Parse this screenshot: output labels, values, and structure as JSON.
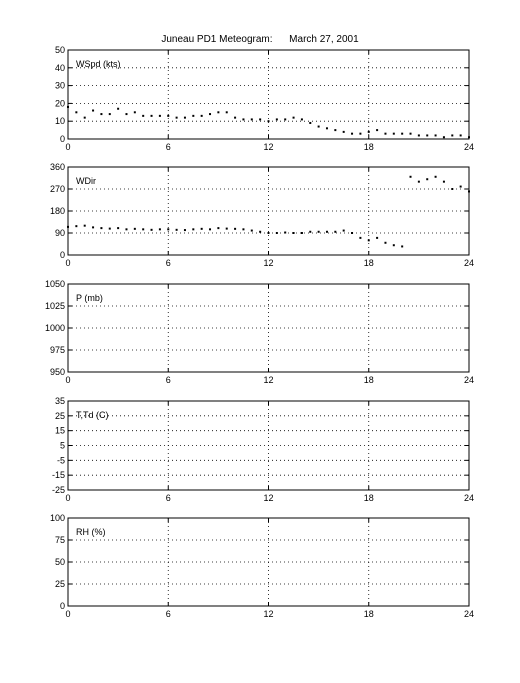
{
  "title": {
    "station": "Juneau PD1 Meteogram:",
    "date": "March 27, 2001"
  },
  "x_ticks": [
    "0",
    "6",
    "12",
    "18",
    "24"
  ],
  "chart_data": [
    {
      "type": "scatter",
      "panel_label": "WSpd (kts)",
      "xlim": [
        0,
        24
      ],
      "ylim": [
        0,
        50
      ],
      "yticks": [
        0,
        10,
        20,
        30,
        40,
        50
      ],
      "ytick_labels": [
        "0",
        "10",
        "20",
        "30",
        "40",
        "50"
      ],
      "grid": true,
      "series": [
        {
          "x": [
            0,
            0.5,
            1,
            1.5,
            2,
            2.5,
            3,
            3.5,
            4,
            4.5,
            5,
            5.5,
            6,
            6.5,
            7,
            7.5,
            8,
            8.5,
            9,
            9.5,
            10,
            10.5,
            11,
            11.5,
            12,
            12.5,
            13,
            13.5,
            14,
            14.5,
            15,
            15.5,
            16,
            16.5,
            17,
            17.5,
            18,
            18.5,
            19,
            19.5,
            20,
            20.5,
            21,
            21.5,
            22,
            22.5,
            23,
            23.5,
            24
          ],
          "y": [
            18,
            15,
            12,
            16,
            14,
            14,
            17,
            14,
            15,
            13,
            13,
            13,
            13,
            12,
            12,
            13,
            13,
            14,
            15,
            15,
            12,
            11,
            11,
            11,
            10,
            11,
            11,
            12,
            11,
            9,
            7,
            6,
            5,
            4,
            3,
            3,
            4,
            5,
            3,
            3,
            3,
            3,
            2,
            2,
            2,
            1,
            2,
            2,
            1
          ]
        }
      ]
    },
    {
      "type": "scatter",
      "panel_label": "WDir",
      "xlim": [
        0,
        24
      ],
      "ylim": [
        0,
        360
      ],
      "yticks": [
        0,
        90,
        180,
        270,
        360
      ],
      "ytick_labels": [
        "0",
        "90",
        "180",
        "270",
        "360"
      ],
      "grid": true,
      "series": [
        {
          "x": [
            0,
            0.5,
            1,
            1.5,
            2,
            2.5,
            3,
            3.5,
            4,
            4.5,
            5,
            5.5,
            6,
            6.5,
            7,
            7.5,
            8,
            8.5,
            9,
            9.5,
            10,
            10.5,
            11,
            11.5,
            12,
            12.5,
            13,
            13.5,
            14,
            14.5,
            15,
            15.5,
            16,
            16.5,
            17,
            17.5,
            18,
            18.5,
            19,
            19.5,
            20,
            20.5,
            21,
            21.5,
            22,
            22.5,
            23,
            23.5,
            24
          ],
          "y": [
            115,
            118,
            120,
            113,
            110,
            108,
            110,
            105,
            107,
            105,
            103,
            105,
            105,
            103,
            102,
            105,
            107,
            105,
            110,
            108,
            107,
            105,
            100,
            95,
            90,
            90,
            92,
            90,
            90,
            95,
            95,
            95,
            95,
            100,
            90,
            70,
            60,
            70,
            50,
            40,
            35,
            320,
            300,
            310,
            320,
            300,
            270,
            280,
            260
          ]
        }
      ]
    },
    {
      "type": "scatter",
      "panel_label": "P (mb)",
      "xlim": [
        0,
        24
      ],
      "ylim": [
        950,
        1050
      ],
      "yticks": [
        950,
        975,
        1000,
        1025,
        1050
      ],
      "ytick_labels": [
        "950",
        "975",
        "1000",
        "1025",
        "1050"
      ],
      "grid": true,
      "series": []
    },
    {
      "type": "scatter",
      "panel_label": "T,Td (C)",
      "xlim": [
        0,
        24
      ],
      "ylim": [
        -25,
        35
      ],
      "yticks": [
        -25,
        -15,
        -5,
        5,
        15,
        25,
        35
      ],
      "ytick_labels": [
        "-25",
        "-15",
        "-5",
        "5",
        "15",
        "25",
        "35"
      ],
      "grid": true,
      "series": []
    },
    {
      "type": "scatter",
      "panel_label": "RH (%)",
      "xlim": [
        0,
        24
      ],
      "ylim": [
        0,
        100
      ],
      "yticks": [
        0,
        25,
        50,
        75,
        100
      ],
      "ytick_labels": [
        "0",
        "25",
        "50",
        "75",
        "100"
      ],
      "grid": true,
      "series": []
    }
  ]
}
